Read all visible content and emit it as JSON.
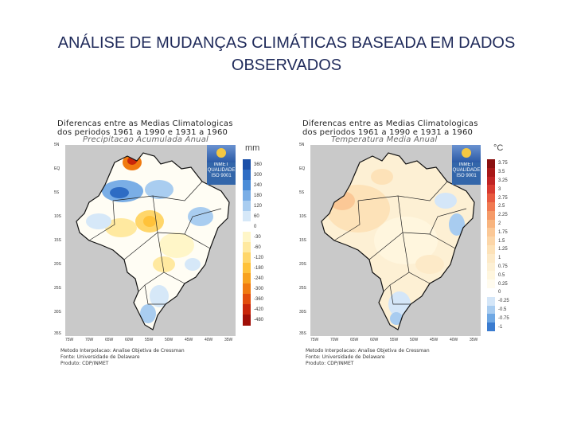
{
  "slide": {
    "title_line1": "ANÁLISE DE MUDANÇAS CLIMÁTICAS BASEADA EM DADOS",
    "title_line2": "OBSERVADOS"
  },
  "maps": {
    "precip": {
      "title1": "Diferencas entre as Medias Climatologicas",
      "title2": "dos periodos 1961 a 1990 e 1931 a 1960",
      "subtitle": "Precipitacao Acumulada Anual",
      "unit": "mm",
      "logo": {
        "name": "INMET",
        "line1": "QUALIDADE",
        "line2": "ISO 9001"
      },
      "legend_values": [
        "360",
        "300",
        "240",
        "180",
        "120",
        "60",
        "0",
        "-30",
        "-60",
        "-120",
        "-180",
        "-240",
        "-300",
        "-360",
        "-420",
        "-480"
      ],
      "legend_colors": [
        "#1a4fa8",
        "#2e6cc4",
        "#4a8cd8",
        "#7aaee6",
        "#a9cdf0",
        "#d6e8f8",
        "#ffffff",
        "#fff6c8",
        "#ffe9a0",
        "#ffd66a",
        "#ffc23a",
        "#f8a21e",
        "#f07a10",
        "#e24d0c",
        "#c8260a",
        "#a01008"
      ],
      "lat_labels": [
        "5N",
        "EQ",
        "5S",
        "10S",
        "15S",
        "20S",
        "25S",
        "30S",
        "35S"
      ],
      "lon_labels": [
        "75W",
        "70W",
        "65W",
        "60W",
        "55W",
        "50W",
        "45W",
        "40W",
        "35W"
      ],
      "footer": [
        "Metodo Interpolacao: Analise Objetiva de Cressman",
        "Fonte: Universidade de Delaware",
        "Produto: CDP/INMET"
      ]
    },
    "temp": {
      "title1": "Diferencas entre as Medias Climatologicas",
      "title2": "dos periodos 1961 a 1990 e 1931 a 1960",
      "subtitle": "Temperatura Media Anual",
      "unit": "°C",
      "logo": {
        "name": "INMET",
        "line1": "QUALIDADE",
        "line2": "ISO 9001"
      },
      "legend_values": [
        "3.75",
        "3.5",
        "3.25",
        "3",
        "2.75",
        "2.5",
        "2.25",
        "2",
        "1.75",
        "1.5",
        "1.25",
        "1",
        "0.75",
        "0.5",
        "0.25",
        "0",
        "-0.25",
        "-0.5",
        "-0.75",
        "-1"
      ],
      "legend_colors": [
        "#8a1010",
        "#a81818",
        "#c02424",
        "#d83a30",
        "#e85a40",
        "#f07a52",
        "#f59a68",
        "#f8b47e",
        "#fbc896",
        "#fcd6a8",
        "#fde2b8",
        "#fdeac8",
        "#fdf0d4",
        "#fff6de",
        "#fffbee",
        "#ffffff",
        "#d4e6f8",
        "#a8ccf0",
        "#6fa8e4",
        "#3b7cd0"
      ],
      "lat_labels": [
        "5N",
        "EQ",
        "5S",
        "10S",
        "15S",
        "20S",
        "25S",
        "30S",
        "35S"
      ],
      "lon_labels": [
        "75W",
        "70W",
        "65W",
        "60W",
        "55W",
        "50W",
        "45W",
        "40W",
        "35W"
      ],
      "footer": [
        "Metodo Interpolacao: Analise Objetiva de Cressman",
        "Fonte: Universidade de Delaware",
        "Produto: CDP/INMET"
      ]
    }
  }
}
